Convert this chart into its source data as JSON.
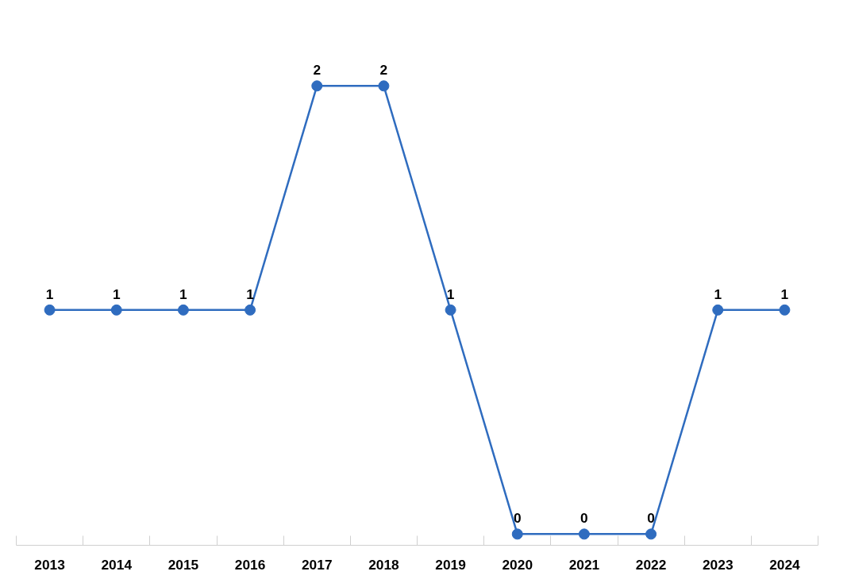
{
  "chart_data": {
    "type": "line",
    "categories": [
      "2013",
      "2014",
      "2015",
      "2016",
      "2017",
      "2018",
      "2019",
      "2020",
      "2021",
      "2022",
      "2023",
      "2024"
    ],
    "values": [
      1,
      1,
      1,
      1,
      2,
      2,
      1,
      0,
      0,
      0,
      1,
      1
    ],
    "color": "#2f6cbf",
    "marker": "circle",
    "data_labels": true,
    "grid": false,
    "tick_labels": "x"
  }
}
